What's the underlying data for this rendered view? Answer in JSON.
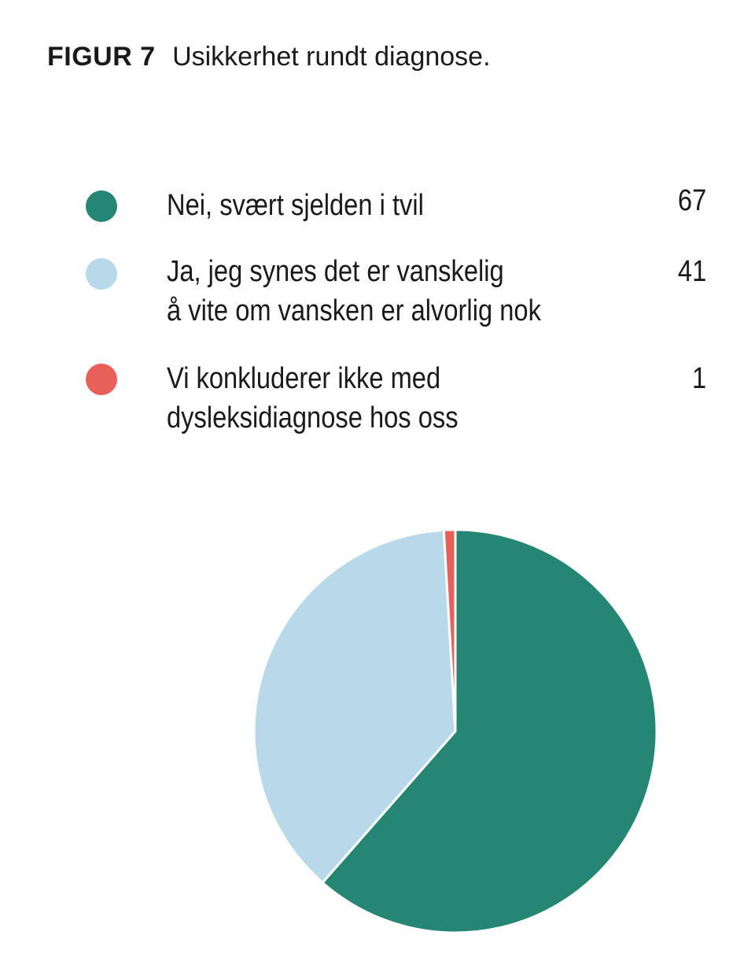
{
  "figure": {
    "label": "FIGUR 7",
    "caption": "Usikkerhet rundt diagnose."
  },
  "chart_data": {
    "type": "pie",
    "title": "Usikkerhet rundt diagnose.",
    "legend_position": "top",
    "slices": [
      {
        "label_lines": [
          "Nei, svært sjelden i tvil"
        ],
        "value": 67,
        "color": "#258673"
      },
      {
        "label_lines": [
          "Ja, jeg synes det er vanskelig",
          "å vite om vansken er alvorlig nok"
        ],
        "value": 41,
        "color": "#b8d9ea"
      },
      {
        "label_lines": [
          "Vi konkluderer ikke med",
          "dysleksidiagnose hos oss"
        ],
        "value": 1,
        "color": "#e9605a"
      }
    ]
  }
}
